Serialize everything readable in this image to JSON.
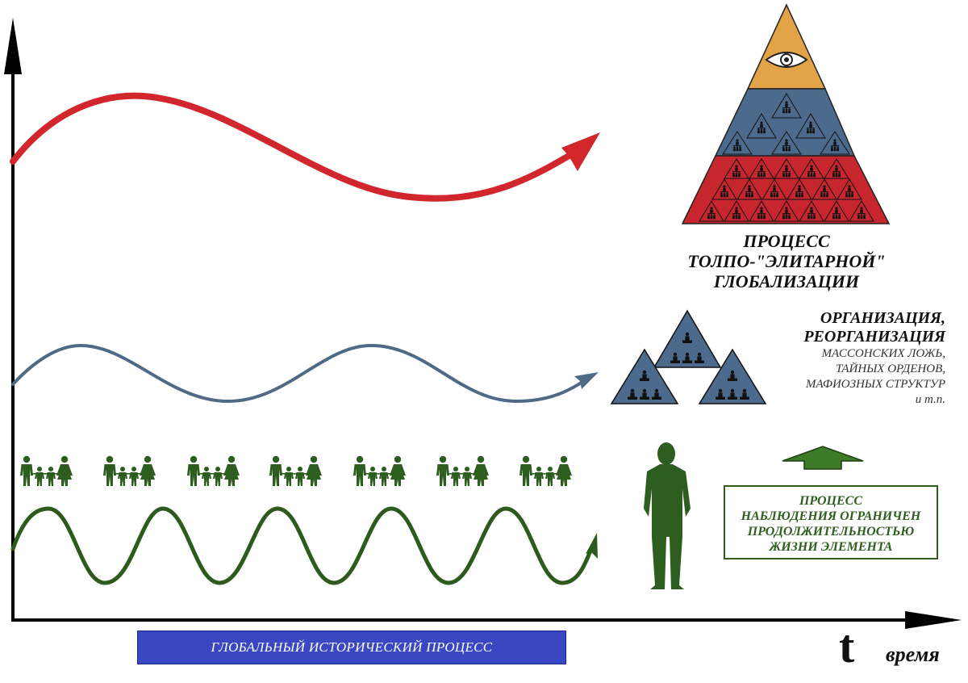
{
  "pyramid": {
    "label_lines": [
      "ПРОЦЕСС",
      "ТОЛПО-\"ЭЛИТАРНОЙ\"",
      "ГЛОБАЛИЗАЦИИ"
    ],
    "colors": {
      "top": "#e2a347",
      "middle": "#4c6a8c",
      "bottom": "#c8262e"
    }
  },
  "organization": {
    "title_lines": [
      "ОРГАНИЗАЦИЯ,",
      "РЕОРГАНИЗАЦИЯ"
    ],
    "detail_lines": [
      "МАССОНСКИХ ЛОЖЬ,",
      "ТАЙНЫХ ОРДЕНОВ,",
      "МАФИОЗНЫХ СТРУКТУР",
      "и т.п."
    ]
  },
  "observation": {
    "lines": [
      "ПРОЦЕСС",
      "НАБЛЮДЕНИЯ ОГРАНИЧЕН",
      "ПРОДОЛЖИТЕЛЬНОСТЬЮ",
      "ЖИЗНИ ЭЛЕМЕНТА"
    ]
  },
  "axis": {
    "bar_label": "ГЛОБАЛЬНЫЙ ИСТОРИЧЕСКИЙ ПРОЦЕСС",
    "t_symbol": "t",
    "time_label": "время"
  },
  "waves": {
    "red": {
      "color": "#d0262c"
    },
    "blue": {
      "color": "#4f6a86"
    },
    "green": {
      "color": "#2d5a1d"
    }
  },
  "people_color": "#2e5d20",
  "family_group_count": 7
}
